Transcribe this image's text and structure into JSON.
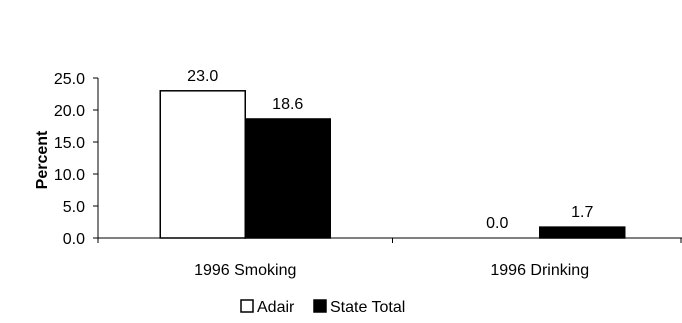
{
  "chart_data": {
    "type": "bar",
    "categories": [
      "1996 Smoking",
      "1996 Drinking"
    ],
    "series": [
      {
        "name": "Adair",
        "values": [
          23.0,
          0.0
        ],
        "color": "#ffffff"
      },
      {
        "name": "State Total",
        "values": [
          18.6,
          1.7
        ],
        "color": "#000000"
      }
    ],
    "data_labels": [
      [
        "23.0",
        "0.0"
      ],
      [
        "18.6",
        "1.7"
      ]
    ],
    "ylabel": "Percent",
    "ylim": [
      0,
      25
    ],
    "yticks": [
      "0.0",
      "5.0",
      "10.0",
      "15.0",
      "20.0",
      "25.0"
    ],
    "ytick_values": [
      0,
      5,
      10,
      15,
      20,
      25
    ],
    "grid": false,
    "legend_position": "bottom"
  }
}
